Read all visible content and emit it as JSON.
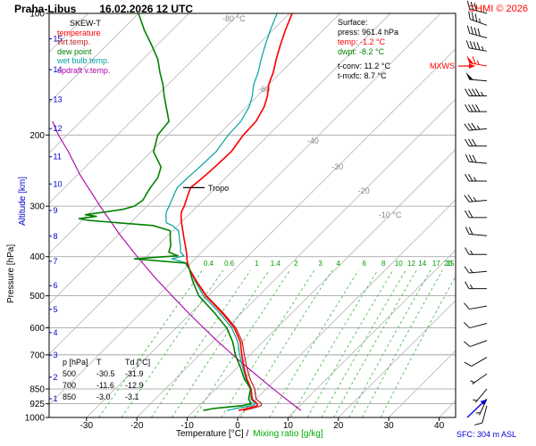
{
  "header": {
    "station": "Praha-Libus",
    "datetime": "16.02.2026 12 UTC",
    "copyright": "CHMI © 2026"
  },
  "legend": {
    "title": "SKEW-T",
    "items": [
      {
        "label": "temperature",
        "color": "#ff0000"
      },
      {
        "label": "virt.temp.",
        "color": "#bb2222"
      },
      {
        "label": "dew point",
        "color": "#008000"
      },
      {
        "label": "wet bulb temp.",
        "color": "#00a0a0"
      },
      {
        "label": "updraft v.temp.",
        "color": "#aa00aa"
      }
    ]
  },
  "surface_info": {
    "title": "Surface:",
    "press": "press: 961.4 hPa",
    "temp": "temp: -1.2 °C",
    "dwpt": "dwpt: -8.2 °C",
    "tconv": "t-conv: 11.2 °C",
    "tmxfc": "t-mxfc: 8.7 °C",
    "temp_color": "#ff0000",
    "dwpt_color": "#008000"
  },
  "axes": {
    "pressure_title": "Pressure [hPa]",
    "altitude_title": "Altitude [km]",
    "x_title_temp": "Temperature [°C] /",
    "x_title_mix": "Mixing ratio [g/kg]",
    "sfc_label": "SFC: 304 m ASL"
  },
  "chart_data": {
    "type": "skewt",
    "station": "Praha-Libus",
    "valid": "16.02.2026 12 UTC",
    "pressure_ticks": [
      100,
      200,
      300,
      400,
      500,
      600,
      700,
      850,
      925,
      1000
    ],
    "altitude_ticks_km": [
      1,
      2,
      3,
      4,
      5,
      6,
      7,
      8,
      9,
      10,
      11,
      12,
      13,
      14,
      15
    ],
    "temperature_ticks": [
      -30,
      -20,
      -10,
      0,
      10,
      20,
      30,
      40
    ],
    "isotherm_labels": [
      {
        "t": -80,
        "text": "-80 °C"
      },
      {
        "t": -60,
        "text": "-60"
      },
      {
        "t": -40,
        "text": "-40"
      },
      {
        "t": -30,
        "text": "-30"
      },
      {
        "t": -20,
        "text": "-20"
      },
      {
        "t": -10,
        "text": "-10 °C"
      }
    ],
    "mixing_ratio_values": [
      0.4,
      0.6,
      1,
      1.4,
      2,
      3,
      4,
      6,
      8,
      10,
      12,
      14,
      17,
      20,
      25
    ],
    "surface": {
      "press_hPa": 961.4,
      "temp_C": -1.2,
      "dwpt_C": -8.2,
      "t_conv_C": 11.2,
      "t_mxfc_C": 8.7,
      "station_alt_m": 304
    },
    "tropopause": {
      "label": "Tropo",
      "pressure_hPa": 270
    },
    "mxws": {
      "label": "MXWS",
      "pressure_hPa": 135,
      "color": "#ff0000"
    },
    "table": {
      "headers": [
        "p [hPa]",
        "T",
        "Td [°C]"
      ],
      "rows": [
        [
          "500",
          "-30.5",
          "-31.9"
        ],
        [
          "700",
          "-11.6",
          "-12.9"
        ],
        [
          "850",
          "-3.0",
          "-3.1"
        ]
      ]
    },
    "levels": [
      [
        961,
        -1.2,
        -8.2
      ],
      [
        950,
        0.2,
        -6.5
      ],
      [
        935,
        1.5,
        -1.5
      ],
      [
        925,
        1.2,
        0.0
      ],
      [
        900,
        -0.8,
        -1.5
      ],
      [
        850,
        -3.0,
        -3.1
      ],
      [
        800,
        -6.0,
        -6.5
      ],
      [
        750,
        -8.8,
        -9.5
      ],
      [
        700,
        -11.6,
        -12.9
      ],
      [
        650,
        -14.5,
        -16.0
      ],
      [
        600,
        -18.5,
        -20.0
      ],
      [
        550,
        -24.0,
        -25.5
      ],
      [
        500,
        -30.5,
        -31.9
      ],
      [
        460,
        -35.3,
        -36.0
      ],
      [
        430,
        -39.0,
        -39.0
      ],
      [
        415,
        -40.6,
        -41.0
      ],
      [
        405,
        -41.6,
        -52.0
      ],
      [
        398,
        -42.2,
        -44.0
      ],
      [
        390,
        -43.0,
        -46.5
      ],
      [
        375,
        -44.6,
        -47.5
      ],
      [
        360,
        -46.3,
        -49.0
      ],
      [
        345,
        -48.0,
        -50.5
      ],
      [
        335,
        -49.2,
        -55.0
      ],
      [
        330,
        -49.8,
        -62.0
      ],
      [
        325,
        -50.4,
        -69.0
      ],
      [
        322,
        -50.7,
        -71.0
      ],
      [
        318,
        -51.2,
        -68.0
      ],
      [
        315,
        -51.5,
        -70.5
      ],
      [
        310,
        -52.0,
        -67.0
      ],
      [
        305,
        -52.3,
        -64.0
      ],
      [
        300,
        -52.6,
        -62.5
      ],
      [
        290,
        -53.4,
        -62.0
      ],
      [
        280,
        -54.2,
        -62.5
      ],
      [
        270,
        -55.0,
        -63.0
      ],
      [
        255,
        -54.6,
        -63.5
      ],
      [
        240,
        -54.3,
        -65.0
      ],
      [
        220,
        -54.1,
        -69.5
      ],
      [
        200,
        -55.0,
        -72.0
      ],
      [
        185,
        -55.2,
        -72.5
      ],
      [
        170,
        -56.5,
        -76.0
      ],
      [
        160,
        -58.0,
        -78.5
      ],
      [
        150,
        -60.0,
        -81.0
      ],
      [
        140,
        -61.5,
        -84.0
      ],
      [
        130,
        -63.5,
        -87.0
      ],
      [
        120,
        -65.5,
        -91.0
      ],
      [
        110,
        -67.5,
        -95.5
      ],
      [
        100,
        -69.5,
        -100.0
      ]
    ],
    "updraft_profile": [
      [
        961,
        11.2
      ],
      [
        925,
        8.1
      ],
      [
        850,
        1.4
      ],
      [
        800,
        -3.3
      ],
      [
        750,
        -8.2
      ],
      [
        700,
        -13.4
      ],
      [
        650,
        -18.9
      ],
      [
        600,
        -24.6
      ],
      [
        550,
        -30.7
      ],
      [
        500,
        -37.2
      ],
      [
        450,
        -44.3
      ],
      [
        400,
        -51.9
      ],
      [
        350,
        -60.2
      ],
      [
        300,
        -69.3
      ],
      [
        250,
        -79.7
      ],
      [
        220,
        -86.4
      ],
      [
        200,
        -91.7
      ],
      [
        185,
        -95.6
      ]
    ],
    "wind_barbs": [
      [
        100,
        30,
        285
      ],
      [
        107,
        35,
        290
      ],
      [
        115,
        40,
        285
      ],
      [
        124,
        45,
        280
      ],
      [
        135,
        65,
        280,
        "#ff0000"
      ],
      [
        147,
        50,
        275
      ],
      [
        160,
        45,
        270
      ],
      [
        175,
        40,
        270
      ],
      [
        193,
        35,
        265
      ],
      [
        213,
        30,
        270
      ],
      [
        235,
        30,
        275
      ],
      [
        260,
        25,
        270
      ],
      [
        290,
        25,
        265
      ],
      [
        320,
        20,
        270
      ],
      [
        355,
        20,
        275
      ],
      [
        395,
        15,
        270
      ],
      [
        435,
        15,
        265
      ],
      [
        480,
        15,
        270
      ],
      [
        530,
        10,
        260
      ],
      [
        585,
        10,
        255
      ],
      [
        645,
        10,
        250
      ],
      [
        710,
        10,
        240
      ],
      [
        780,
        5,
        235
      ],
      [
        850,
        5,
        220
      ],
      [
        900,
        5,
        205
      ],
      [
        935,
        10,
        195
      ]
    ],
    "sfc_wind": {
      "color": "#0000dd"
    }
  }
}
